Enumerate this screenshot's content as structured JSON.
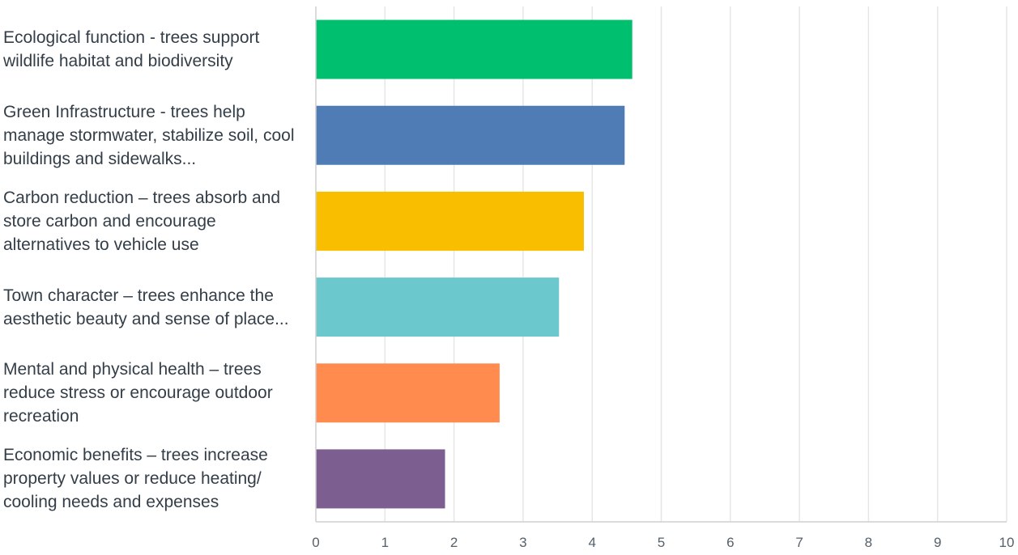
{
  "chart_data": {
    "type": "bar",
    "orientation": "horizontal",
    "categories": [
      "Ecological function - trees support wildlife habitat and biodiversity",
      "Green Infrastructure - trees help manage stormwater, stabilize soil, cool buildings and sidewalks...",
      "Carbon reduction – trees absorb and store carbon and encourage alternatives to vehicle use",
      "Town character – trees enhance the aesthetic beauty and sense of place...",
      "Mental and physical health – trees reduce stress or encourage outdoor recreation",
      "Economic benefits – trees increase property values or reduce heating/ cooling needs and expenses"
    ],
    "values": [
      4.58,
      4.47,
      3.88,
      3.52,
      2.66,
      1.87
    ],
    "colors": [
      "#00bf6f",
      "#507cb6",
      "#f9be00",
      "#6bc8cd",
      "#ff8b4f",
      "#7d5e90"
    ],
    "xlim": [
      0,
      10
    ],
    "xticks": [
      "0",
      "1",
      "2",
      "3",
      "4",
      "5",
      "6",
      "7",
      "8",
      "9",
      "10"
    ],
    "grid": true,
    "legend": "none"
  }
}
